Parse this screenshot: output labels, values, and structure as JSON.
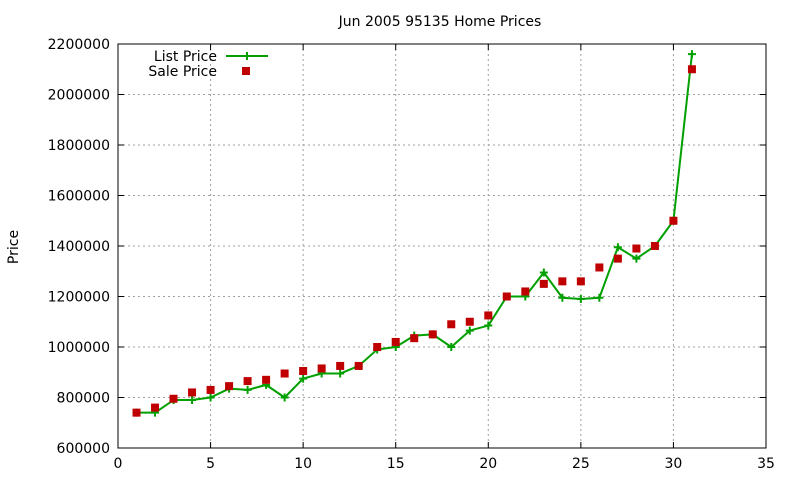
{
  "chart_data": {
    "type": "line",
    "title": "Jun 2005 95135 Home Prices",
    "xlabel": "",
    "ylabel": "Price",
    "xlim": [
      0,
      35
    ],
    "ylim": [
      600000,
      2200000
    ],
    "xticks": [
      "0",
      "5",
      "10",
      "15",
      "20",
      "25",
      "30",
      "35"
    ],
    "yticks": [
      "600000",
      "800000",
      "1000000",
      "1200000",
      "1400000",
      "1600000",
      "1800000",
      "2000000",
      "2200000"
    ],
    "grid": true,
    "legend_position": "top-left",
    "series": [
      {
        "name": "List Price",
        "style": "line-with-plus-markers",
        "color": "#00a000",
        "x": [
          1,
          2,
          3,
          4,
          5,
          6,
          7,
          8,
          9,
          10,
          11,
          12,
          13,
          14,
          15,
          16,
          17,
          18,
          19,
          20,
          21,
          22,
          23,
          24,
          25,
          26,
          27,
          28,
          29,
          30,
          31
        ],
        "y": [
          740000,
          740000,
          790000,
          790000,
          800000,
          835000,
          830000,
          850000,
          800000,
          875000,
          895000,
          895000,
          925000,
          990000,
          1000000,
          1045000,
          1050000,
          1000000,
          1065000,
          1085000,
          1200000,
          1200000,
          1295000,
          1195000,
          1190000,
          1195000,
          1395000,
          1350000,
          1400000,
          1500000,
          2160000
        ]
      },
      {
        "name": "Sale Price",
        "style": "square-markers",
        "color": "#c00000",
        "x": [
          1,
          2,
          3,
          4,
          5,
          6,
          7,
          8,
          9,
          10,
          11,
          12,
          13,
          14,
          15,
          16,
          17,
          18,
          19,
          20,
          21,
          22,
          23,
          24,
          25,
          26,
          27,
          28,
          29,
          30,
          31
        ],
        "y": [
          740000,
          760000,
          795000,
          820000,
          830000,
          845000,
          865000,
          870000,
          895000,
          905000,
          915000,
          925000,
          925000,
          1000000,
          1020000,
          1035000,
          1050000,
          1090000,
          1100000,
          1125000,
          1200000,
          1220000,
          1250000,
          1260000,
          1260000,
          1315000,
          1350000,
          1390000,
          1400000,
          1500000,
          2100000
        ]
      }
    ]
  }
}
